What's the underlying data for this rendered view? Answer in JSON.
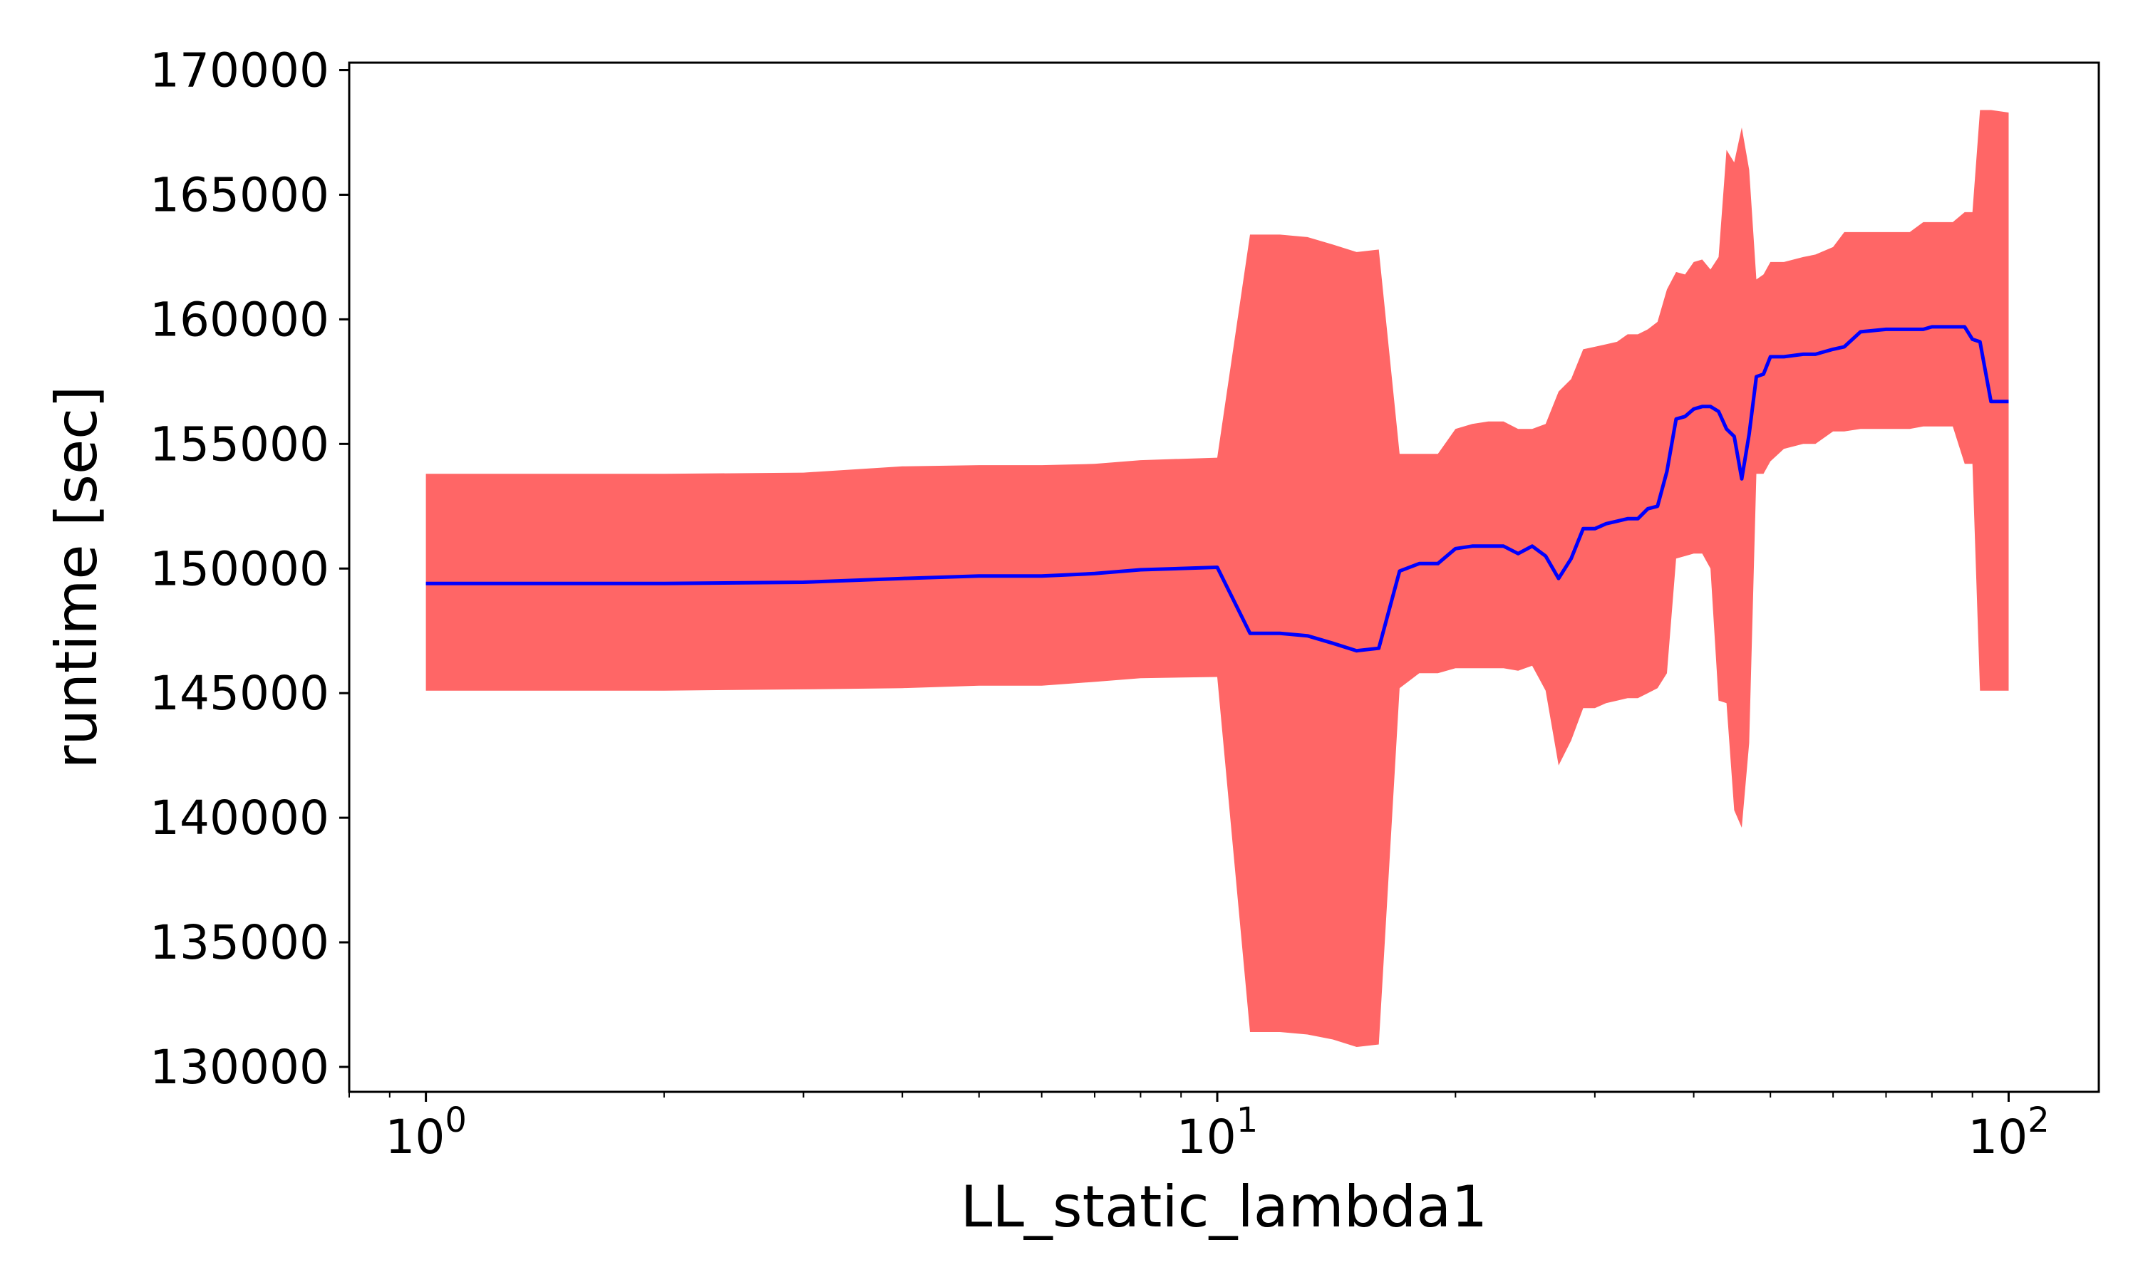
{
  "chart_data": {
    "type": "area",
    "xlabel": "LL_static_lambda1",
    "ylabel": "runtime [sec]",
    "x_scale": "log",
    "xlim": [
      0.8,
      130
    ],
    "ylim": [
      129000,
      170300
    ],
    "grid": false,
    "x_ticks": [
      {
        "value": 1,
        "base": "10",
        "exp": "0"
      },
      {
        "value": 10,
        "base": "10",
        "exp": "1"
      },
      {
        "value": 100,
        "base": "10",
        "exp": "2"
      }
    ],
    "y_ticks": [
      130000,
      135000,
      140000,
      145000,
      150000,
      155000,
      160000,
      165000,
      170000
    ],
    "y_tick_labels": [
      "130000",
      "135000",
      "140000",
      "145000",
      "150000",
      "155000",
      "160000",
      "165000",
      "170000"
    ],
    "colors": {
      "mean_line": "#0000ff",
      "band": "#ff6666",
      "axes": "#000000"
    },
    "series": [
      {
        "x": [
          1,
          2,
          3,
          4,
          5,
          6,
          7,
          8,
          10,
          11,
          12,
          13,
          14,
          15,
          16,
          17,
          18,
          19,
          20,
          21,
          22,
          23,
          24,
          25,
          26,
          27,
          28,
          29,
          30,
          31,
          32,
          33,
          34,
          35,
          36,
          37,
          38,
          39,
          40,
          41,
          42,
          43,
          44,
          45,
          46,
          47,
          48,
          49,
          50,
          52,
          55,
          57,
          60,
          62,
          65,
          70,
          75,
          78,
          80,
          85,
          88,
          90,
          92,
          95,
          100
        ],
        "mean": [
          149400,
          149400,
          149450,
          149600,
          149700,
          149700,
          149800,
          149950,
          150050,
          147400,
          147400,
          147300,
          147000,
          146700,
          146800,
          149900,
          150200,
          150200,
          150800,
          150900,
          150900,
          150900,
          150600,
          150900,
          150500,
          149600,
          150400,
          151600,
          151600,
          151800,
          151900,
          152000,
          152000,
          152400,
          152500,
          153900,
          156000,
          156100,
          156400,
          156500,
          156500,
          156300,
          155600,
          155300,
          153600,
          155400,
          157700,
          157800,
          158500,
          158500,
          158600,
          158600,
          158800,
          158900,
          159500,
          159600,
          159600,
          159600,
          159700,
          159700,
          159700,
          159200,
          159100,
          156700,
          156700
        ],
        "upper": [
          153800,
          153800,
          153850,
          154100,
          154150,
          154150,
          154200,
          154350,
          154450,
          163400,
          163400,
          163300,
          163000,
          162700,
          162800,
          154600,
          154600,
          154600,
          155600,
          155800,
          155900,
          155900,
          155600,
          155600,
          155800,
          157100,
          157600,
          158800,
          158900,
          159000,
          159100,
          159400,
          159400,
          159600,
          159900,
          161200,
          161900,
          161800,
          162300,
          162400,
          162000,
          162500,
          166800,
          166300,
          167700,
          166000,
          161600,
          161800,
          162300,
          162300,
          162500,
          162600,
          162900,
          163500,
          163500,
          163500,
          163500,
          163900,
          163900,
          163900,
          164300,
          164300,
          168400,
          168400,
          168300
        ],
        "lower": [
          145100,
          145100,
          145150,
          145200,
          145300,
          145300,
          145450,
          145600,
          145650,
          131400,
          131400,
          131300,
          131100,
          130800,
          130900,
          145200,
          145800,
          145800,
          146000,
          146000,
          146000,
          146000,
          145900,
          146100,
          145100,
          142100,
          143100,
          144400,
          144400,
          144600,
          144700,
          144800,
          144800,
          145000,
          145200,
          145800,
          150400,
          150500,
          150600,
          150600,
          150000,
          144700,
          144600,
          140300,
          139600,
          143000,
          153800,
          153800,
          154300,
          154800,
          155000,
          155000,
          155500,
          155500,
          155600,
          155600,
          155600,
          155700,
          155700,
          155700,
          154200,
          154200,
          145100,
          145100,
          145100
        ]
      }
    ]
  }
}
